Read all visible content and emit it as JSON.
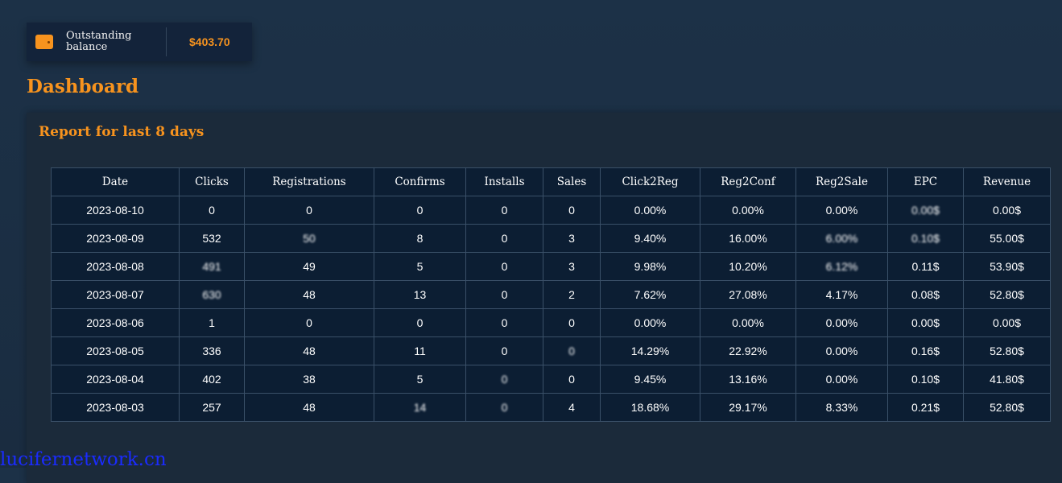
{
  "balance": {
    "icon": "wallet-icon",
    "label": "Outstanding balance",
    "value": "$403.70"
  },
  "page_title": "Dashboard",
  "report": {
    "title": "Report for last 8 days",
    "columns": [
      "Date",
      "Clicks",
      "Registrations",
      "Confirms",
      "Installs",
      "Sales",
      "Click2Reg",
      "Reg2Conf",
      "Reg2Sale",
      "EPC",
      "Revenue"
    ],
    "rows": [
      [
        "2023-08-10",
        "0",
        "0",
        "0",
        "0",
        "0",
        "0.00%",
        "0.00%",
        "0.00%",
        "0.00$",
        "0.00$"
      ],
      [
        "2023-08-09",
        "532",
        "50",
        "8",
        "0",
        "3",
        "9.40%",
        "16.00%",
        "6.00%",
        "0.10$",
        "55.00$"
      ],
      [
        "2023-08-08",
        "491",
        "49",
        "5",
        "0",
        "3",
        "9.98%",
        "10.20%",
        "6.12%",
        "0.11$",
        "53.90$"
      ],
      [
        "2023-08-07",
        "630",
        "48",
        "13",
        "0",
        "2",
        "7.62%",
        "27.08%",
        "4.17%",
        "0.08$",
        "52.80$"
      ],
      [
        "2023-08-06",
        "1",
        "0",
        "0",
        "0",
        "0",
        "0.00%",
        "0.00%",
        "0.00%",
        "0.00$",
        "0.00$"
      ],
      [
        "2023-08-05",
        "336",
        "48",
        "11",
        "0",
        "0",
        "14.29%",
        "22.92%",
        "0.00%",
        "0.16$",
        "52.80$"
      ],
      [
        "2023-08-04",
        "402",
        "38",
        "5",
        "0",
        "0",
        "9.45%",
        "13.16%",
        "0.00%",
        "0.10$",
        "41.80$"
      ],
      [
        "2023-08-03",
        "257",
        "48",
        "14",
        "0",
        "4",
        "18.68%",
        "29.17%",
        "8.33%",
        "0.21$",
        "52.80$"
      ]
    ],
    "blurred": [
      [
        0,
        9
      ],
      [
        1,
        2
      ],
      [
        1,
        8
      ],
      [
        1,
        9
      ],
      [
        2,
        1
      ],
      [
        2,
        8
      ],
      [
        3,
        1
      ],
      [
        5,
        5
      ],
      [
        6,
        4
      ],
      [
        7,
        3
      ],
      [
        7,
        4
      ]
    ]
  },
  "watermark": "lucifernetwork.cn",
  "colors": {
    "accent": "#f7931e",
    "table_bg": "#0c1e33"
  }
}
